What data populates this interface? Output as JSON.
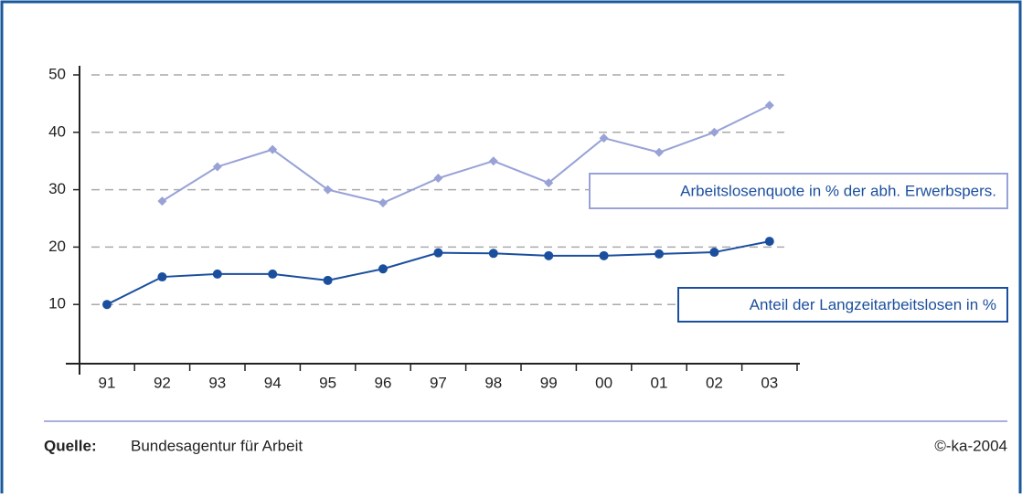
{
  "chart_data": {
    "type": "line",
    "categories": [
      "91",
      "92",
      "93",
      "94",
      "95",
      "96",
      "97",
      "98",
      "99",
      "00",
      "01",
      "02",
      "03"
    ],
    "series": [
      {
        "name": "Arbeitslosenquote in % der abh. Erwerbspers.",
        "color": "#98a2d6",
        "marker": "diamond",
        "values": [
          null,
          28,
          34,
          37,
          30,
          27.7,
          32,
          35,
          31.2,
          39,
          36.5,
          40,
          44.7
        ]
      },
      {
        "name": "Anteil der Langzeitarbeitslosen in %",
        "color": "#1b4f9e",
        "marker": "circle",
        "values": [
          10,
          14.8,
          15.3,
          15.3,
          14.2,
          16.2,
          19,
          18.9,
          18.5,
          18.5,
          18.8,
          19.1,
          21
        ]
      }
    ],
    "ylim": [
      0,
      50
    ],
    "yticks": [
      10,
      20,
      30,
      40,
      50
    ],
    "grid": true
  },
  "footer": {
    "source_label": "Quelle:",
    "source": "Bundesagentur für Arbeit",
    "copyright": "©-ka-2004"
  }
}
